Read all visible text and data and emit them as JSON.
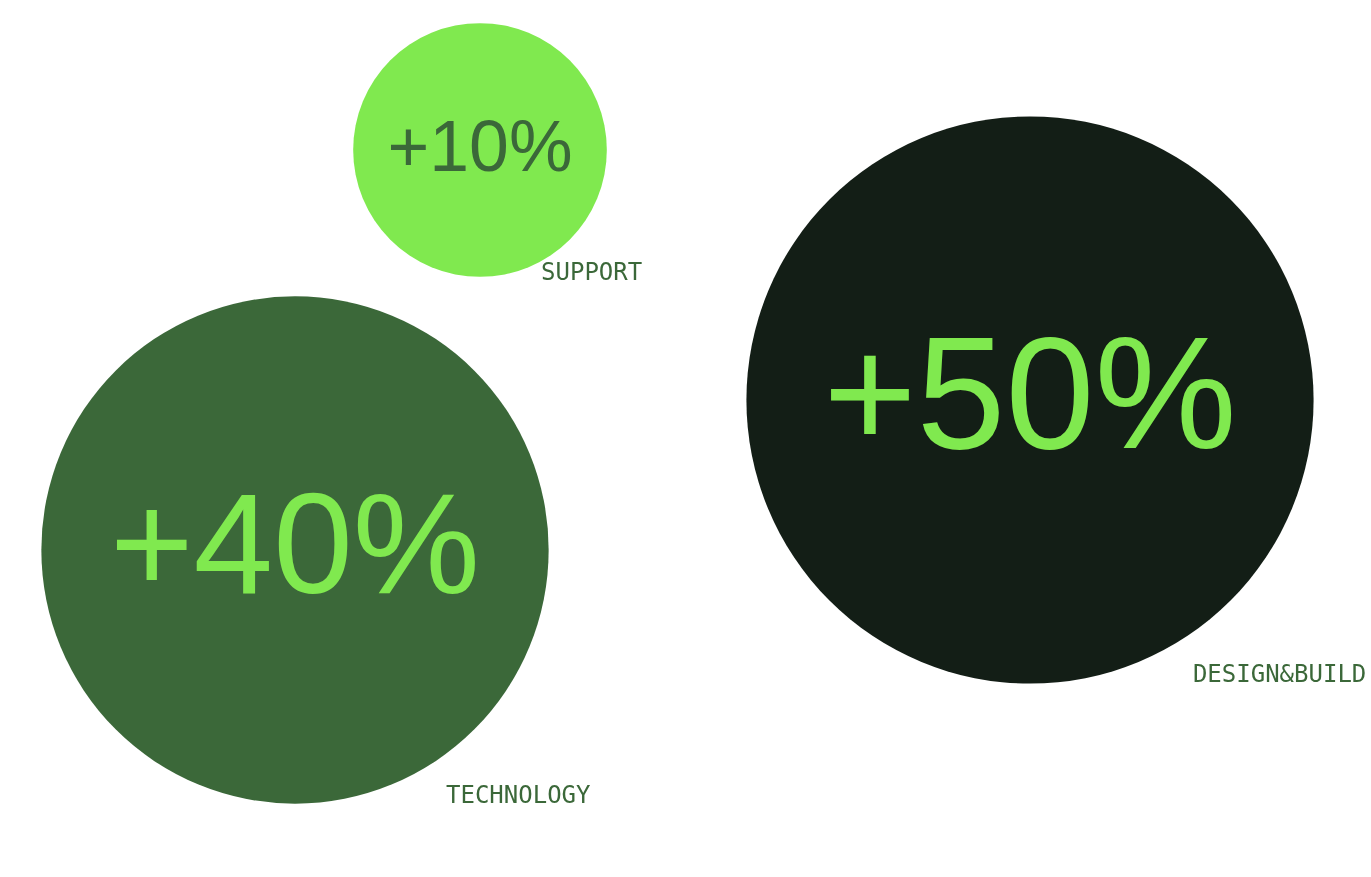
{
  "chart_data": {
    "type": "other",
    "categories": [
      "SUPPORT",
      "TECHNOLOGY",
      "DESIGN&BUILD"
    ],
    "values": [
      10,
      40,
      50
    ],
    "value_labels": [
      "+10%",
      "+40%",
      "+50%"
    ],
    "colors": [
      "#80e94f",
      "#3b6839",
      "#131e16"
    ]
  }
}
